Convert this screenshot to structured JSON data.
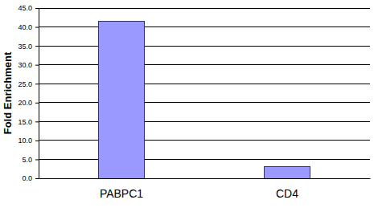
{
  "chart_data": {
    "type": "bar",
    "ylabel": "Fold Enrichment",
    "categories": [
      "PABPC1",
      "CD4"
    ],
    "values": [
      41.5,
      3.0
    ],
    "color": "#9999ff",
    "ylim": [
      0,
      45
    ],
    "yticks": [
      {
        "value": 0,
        "label": "0.0"
      },
      {
        "value": 5,
        "label": "5.0"
      },
      {
        "value": 10,
        "label": "10.0"
      },
      {
        "value": 15,
        "label": "15.0"
      },
      {
        "value": 20,
        "label": "20.0"
      },
      {
        "value": 25,
        "label": "25.0"
      },
      {
        "value": 30,
        "label": "30.0"
      },
      {
        "value": 35,
        "label": "35.0"
      },
      {
        "value": 40,
        "label": "40.0"
      },
      {
        "value": 45,
        "label": "45.0"
      }
    ],
    "grid": true
  }
}
